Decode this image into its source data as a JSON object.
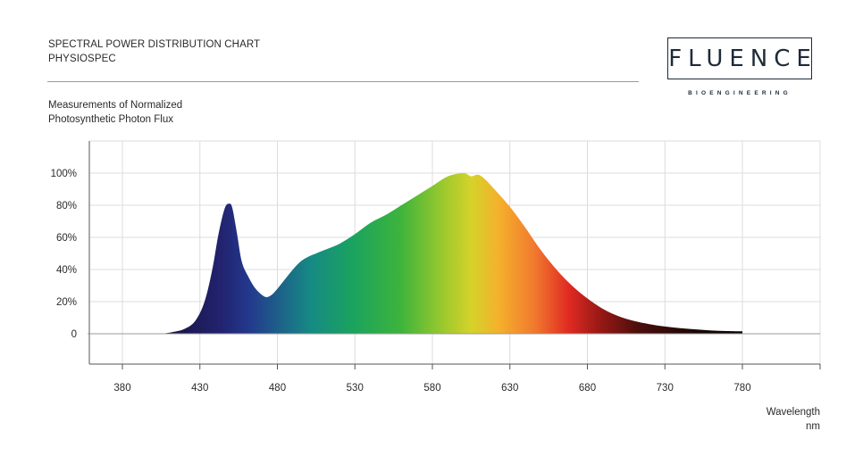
{
  "header": {
    "title_line1": "SPECTRAL POWER DISTRIBUTION CHART",
    "title_line2": "PHYSIOSPEC",
    "subtitle_line1": "Measurements of Normalized",
    "subtitle_line2": "Photosynthetic Photon Flux"
  },
  "logo": {
    "wordmark": "FLUENCE",
    "tagline": "BIOENGINEERING"
  },
  "colors": {
    "grid": "#dcdcdc",
    "axis": "#555555",
    "logo": "#1e2a38"
  },
  "chart_data": {
    "type": "area",
    "title": "SPECTRAL POWER DISTRIBUTION CHART",
    "subtitle": "PHYSIOSPEC",
    "xlabel": "Wavelength",
    "xunit": "nm",
    "xlim": [
      380,
      830
    ],
    "ylim": [
      -20,
      105
    ],
    "xticks": [
      380,
      430,
      480,
      530,
      580,
      630,
      680,
      730,
      780
    ],
    "yticks": [
      {
        "value": 0,
        "label": "0"
      },
      {
        "value": 20,
        "label": "20%"
      },
      {
        "value": 40,
        "label": "40%"
      },
      {
        "value": 60,
        "label": "60%"
      },
      {
        "value": 80,
        "label": "80%"
      },
      {
        "value": 100,
        "label": "100%"
      }
    ],
    "grid": true,
    "fill": "visible-spectrum gradient",
    "x": [
      405,
      412,
      420,
      427,
      433,
      438,
      442,
      446,
      449,
      451,
      454,
      457,
      461,
      466,
      472,
      476,
      480,
      485,
      490,
      495,
      500,
      505,
      510,
      520,
      530,
      540,
      550,
      560,
      570,
      580,
      590,
      600,
      605,
      609,
      613,
      620,
      630,
      640,
      650,
      660,
      670,
      680,
      690,
      700,
      710,
      720,
      730,
      740,
      750,
      760,
      770,
      780
    ],
    "y": [
      0,
      1,
      3,
      8,
      20,
      40,
      62,
      78,
      81,
      78,
      62,
      45,
      36,
      28,
      23,
      24,
      28,
      34,
      40,
      45,
      48,
      50,
      52,
      56,
      62,
      69,
      74,
      80,
      86,
      92,
      98,
      100,
      98,
      99,
      97,
      90,
      79,
      66,
      52,
      40,
      30,
      22,
      15.5,
      11,
      8,
      6,
      4.5,
      3.5,
      2.7,
      2,
      1.7,
      1.5
    ]
  }
}
